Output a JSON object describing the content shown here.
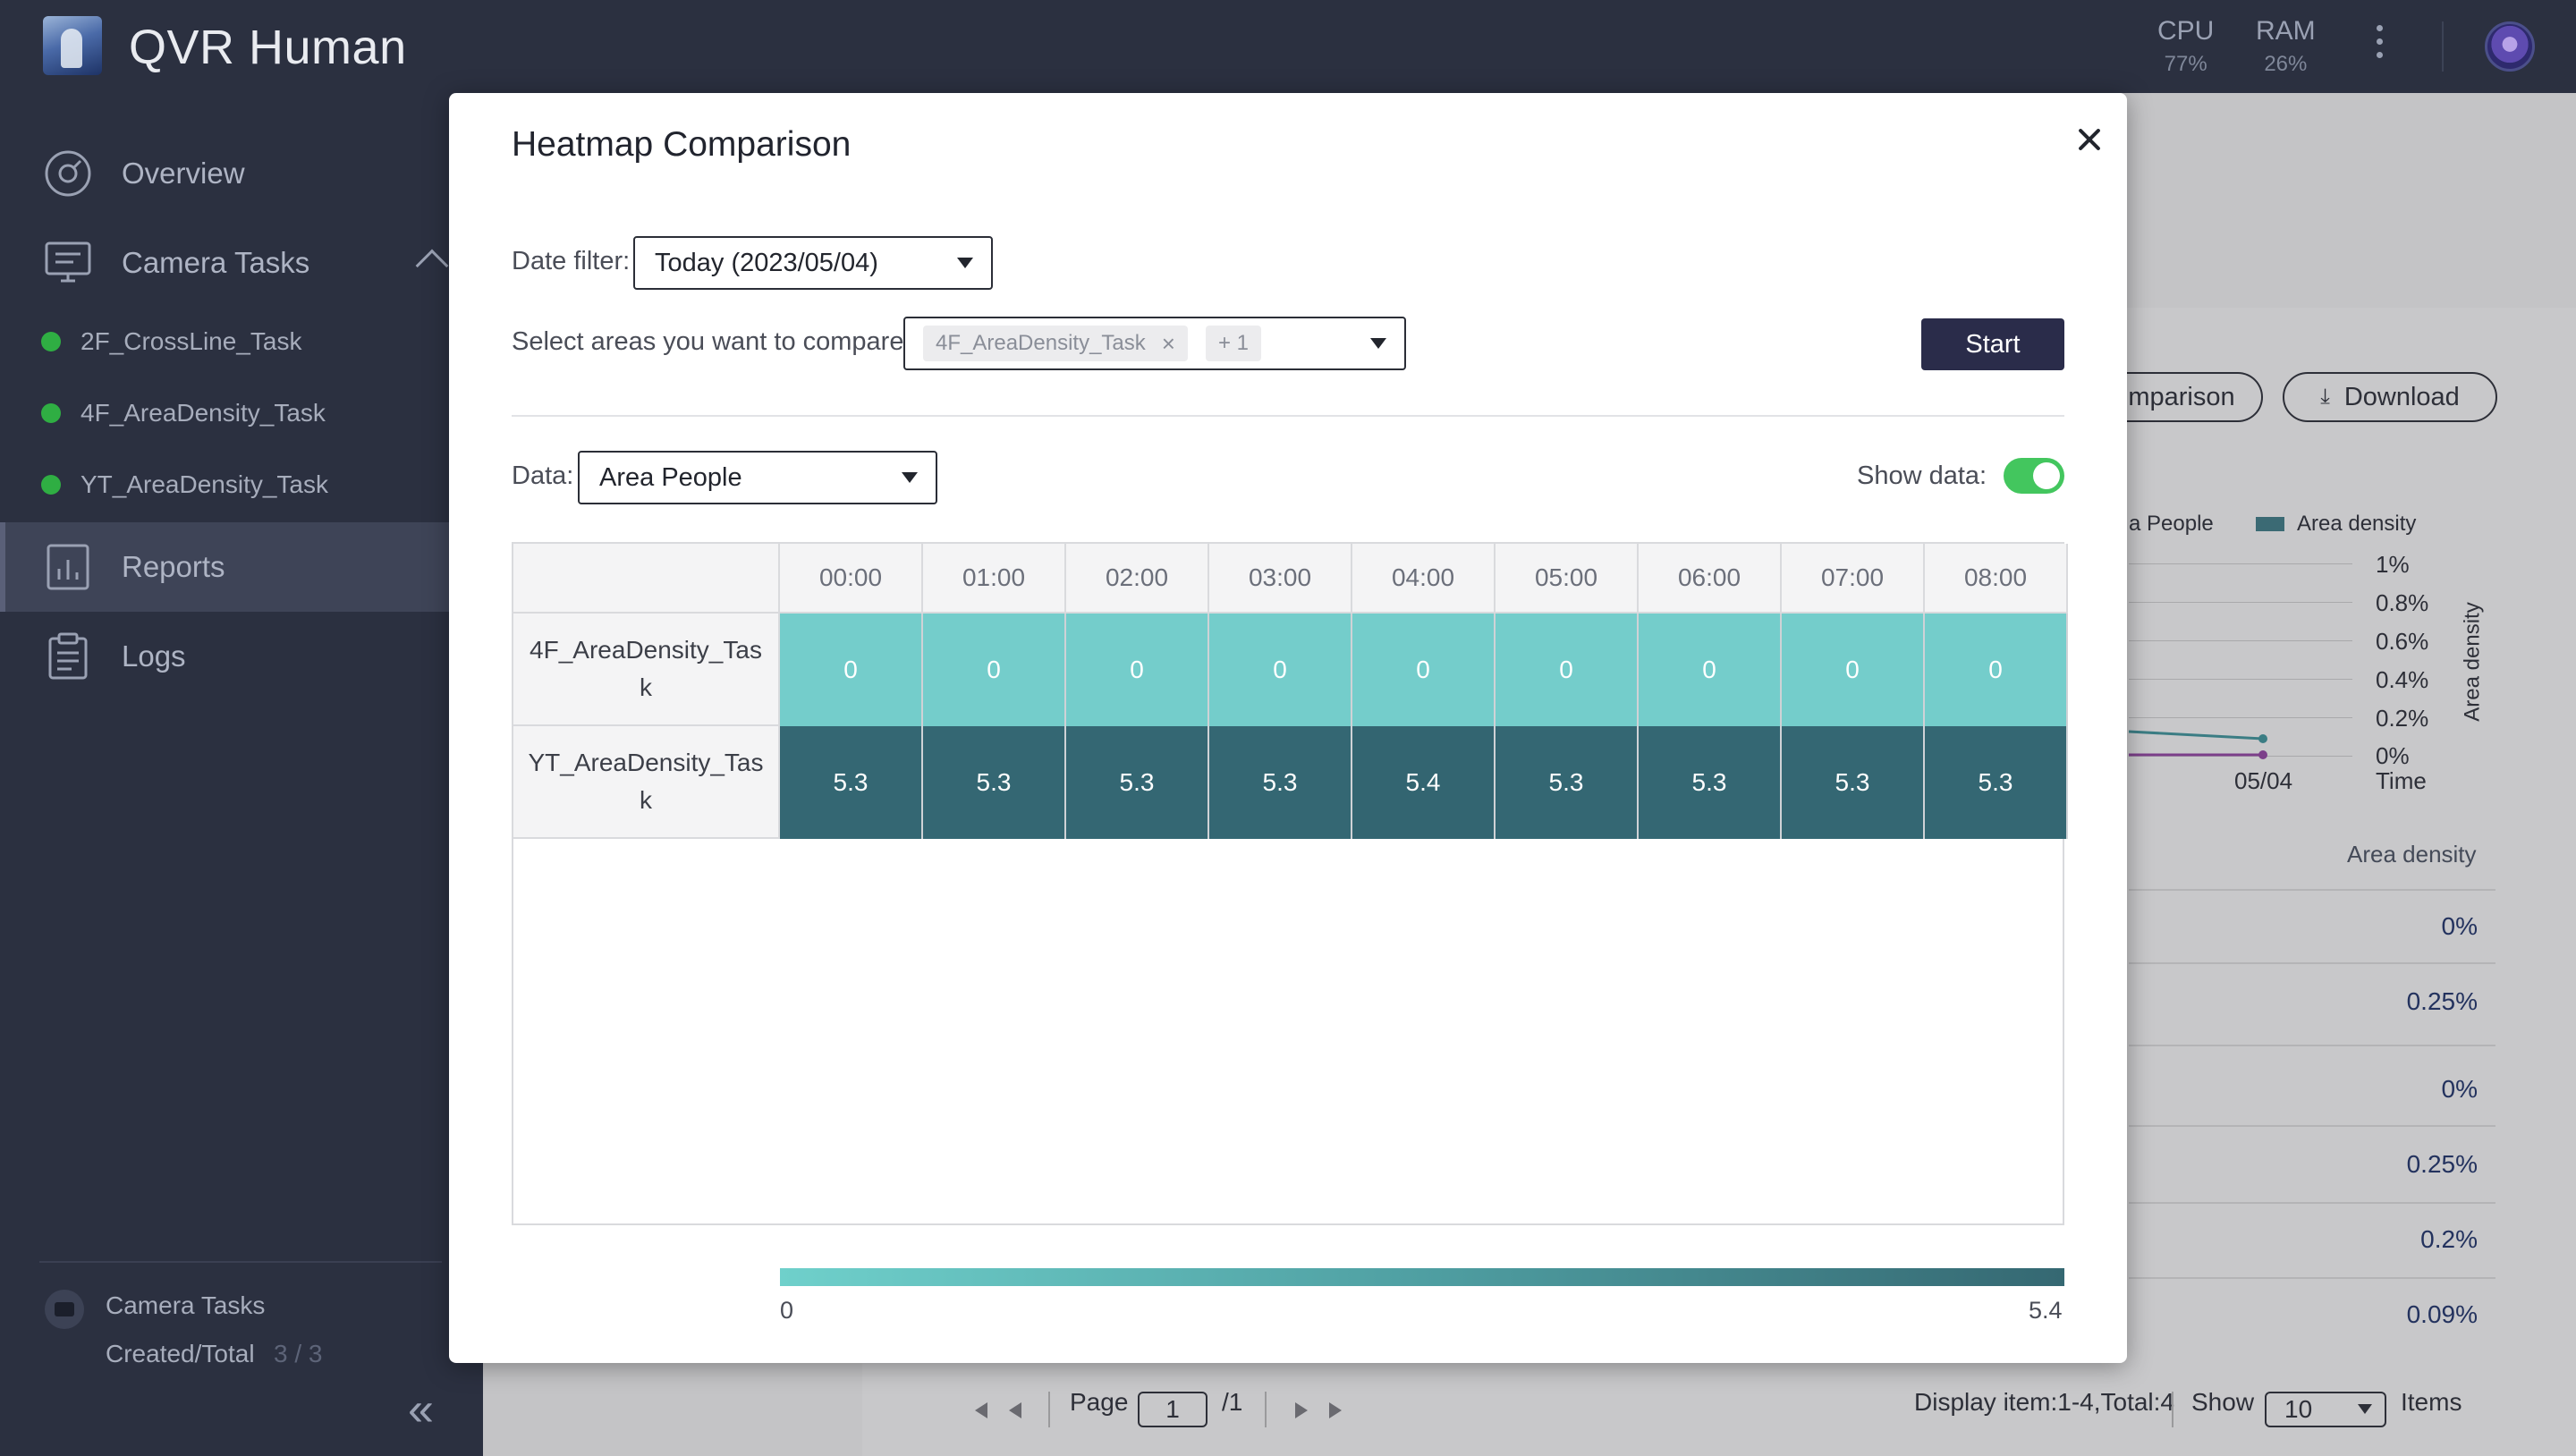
{
  "app": {
    "title": "QVR Human"
  },
  "topbar": {
    "cpu_label": "CPU",
    "cpu_value": "77%",
    "ram_label": "RAM",
    "ram_value": "26%"
  },
  "sidebar": {
    "items": [
      {
        "label": "Overview",
        "icon": "overview-icon"
      },
      {
        "label": "Camera Tasks",
        "icon": "monitor-icon"
      },
      {
        "label": "Reports",
        "icon": "chart-icon",
        "active": true
      },
      {
        "label": "Logs",
        "icon": "clipboard-icon"
      }
    ],
    "tasks": [
      "2F_CrossLine_Task",
      "4F_AreaDensity_Task",
      "YT_AreaDensity_Task"
    ],
    "footer": {
      "title": "Camera Tasks",
      "label": "Created/Total",
      "count": "3 / 3"
    },
    "collapse_glyph": "«"
  },
  "background": {
    "comparison_button": "mparison",
    "download_button": "Download",
    "legend": [
      "a People",
      "Area density"
    ],
    "y_ticks": [
      "1%",
      "0.8%",
      "0.6%",
      "0.4%",
      "0.2%",
      "0%"
    ],
    "x_tick": "05/04",
    "x_label": "Time",
    "y_label": "Area density",
    "table_header": "Area density",
    "table_values": [
      "0%",
      "0.25%",
      "0%",
      "0.25%",
      "0.2%",
      "0.09%"
    ],
    "pager": {
      "page_label": "Page",
      "page_value": "1",
      "page_total": "/1",
      "display_text": "Display item:1-4,Total:4",
      "show_label": "Show",
      "show_value": "10",
      "items_label": "Items"
    }
  },
  "modal": {
    "title": "Heatmap Comparison",
    "date_filter_label": "Date filter:",
    "date_filter_value": "Today (2023/05/04)",
    "compare_label": "Select areas you want to compare:",
    "compare_tag": "4F_AreaDensity_Task",
    "compare_more": "+ 1",
    "start_button": "Start",
    "data_label": "Data:",
    "data_value": "Area People",
    "show_data_label": "Show data:",
    "show_data_on": true,
    "heatmap": {
      "hours": [
        "00:00",
        "01:00",
        "02:00",
        "03:00",
        "04:00",
        "05:00",
        "06:00",
        "07:00",
        "08:00"
      ],
      "rows": [
        {
          "name": "4F_AreaDensity_Task",
          "values": [
            "0",
            "0",
            "0",
            "0",
            "0",
            "0",
            "0",
            "0",
            "0"
          ]
        },
        {
          "name": "YT_AreaDensity_Task",
          "values": [
            "5.3",
            "5.3",
            "5.3",
            "5.3",
            "5.4",
            "5.3",
            "5.3",
            "5.3",
            "5.3"
          ]
        }
      ],
      "scale_min": "0",
      "scale_max": "5.4",
      "color_low": "#74cdcb",
      "color_high": "#336571"
    }
  }
}
